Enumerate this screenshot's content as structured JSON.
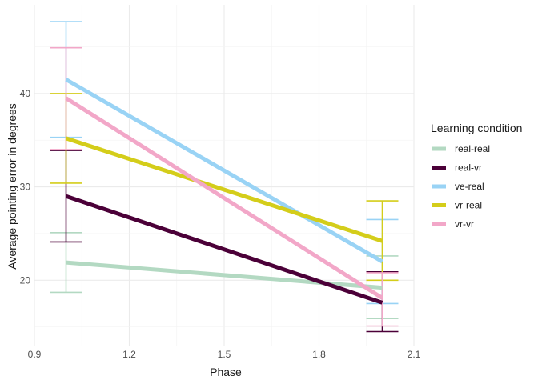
{
  "chart_data": {
    "type": "line",
    "xlabel": "Phase",
    "ylabel": "Average pointing error in degrees",
    "xlim": [
      0.9,
      2.1
    ],
    "ylim": [
      13.0,
      49.5
    ],
    "x_ticks": [
      "0.9",
      "1.2",
      "1.5",
      "1.8",
      "2.1"
    ],
    "x_tick_values": [
      0.9,
      1.2,
      1.5,
      1.8,
      2.1
    ],
    "y_ticks": [
      "20",
      "30",
      "40"
    ],
    "y_tick_values": [
      20,
      30,
      40
    ],
    "grid": true,
    "legend": {
      "title": "Learning condition",
      "position": "right"
    },
    "x": [
      1,
      2
    ],
    "series": [
      {
        "name": "real-real",
        "color": "#b3d9c2",
        "values": [
          21.9,
          19.2
        ],
        "err_low": [
          18.7,
          15.9
        ],
        "err_high": [
          25.1,
          22.6
        ]
      },
      {
        "name": "real-vr",
        "color": "#4b0038",
        "values": [
          29.0,
          17.6
        ],
        "err_low": [
          24.1,
          14.5
        ],
        "err_high": [
          33.9,
          20.9
        ]
      },
      {
        "name": "ve-real",
        "color": "#99d3f5",
        "values": [
          41.5,
          22.0
        ],
        "err_low": [
          35.3,
          17.5
        ],
        "err_high": [
          47.7,
          26.5
        ]
      },
      {
        "name": "vr-real",
        "color": "#d4cd1a",
        "values": [
          35.2,
          24.2
        ],
        "err_low": [
          30.4,
          20.0
        ],
        "err_high": [
          40.0,
          28.5
        ]
      },
      {
        "name": "vr-vr",
        "color": "#f2a7c8",
        "values": [
          39.5,
          18.1
        ],
        "err_low": [
          34.0,
          15.1
        ],
        "err_high": [
          44.9,
          20.8
        ]
      }
    ]
  }
}
